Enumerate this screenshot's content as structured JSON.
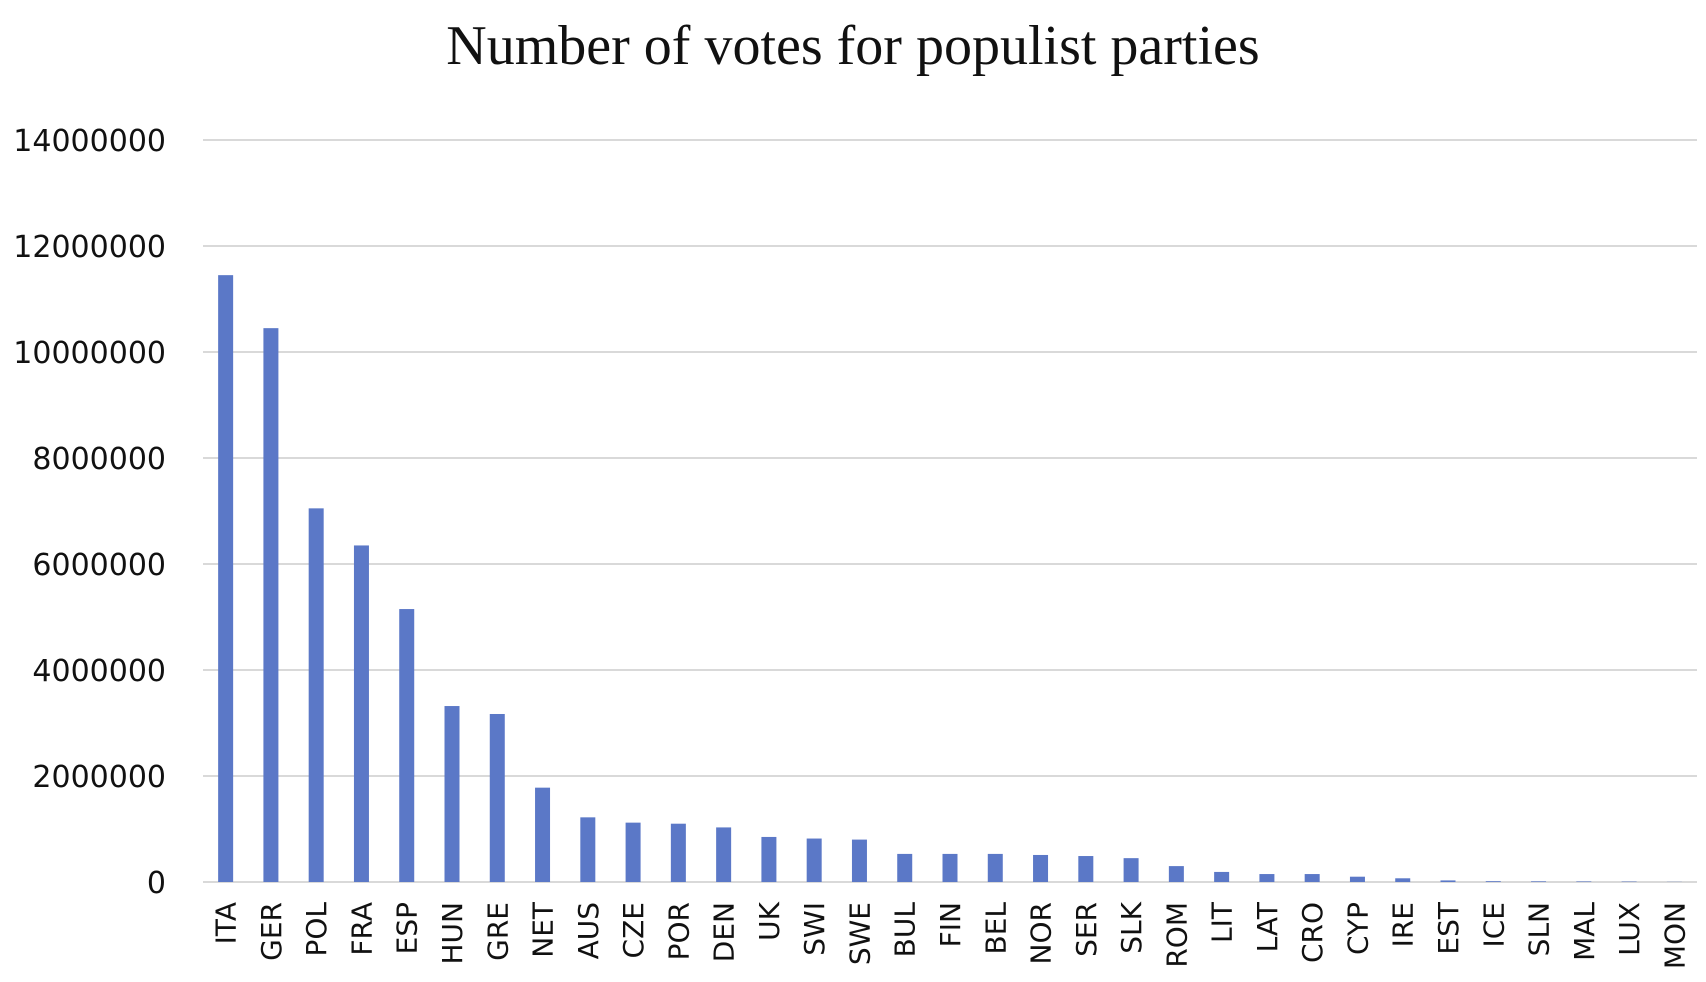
{
  "chart_data": {
    "type": "bar",
    "title": "Number of votes for populist parties",
    "xlabel": "",
    "ylabel": "",
    "ylim": [
      0,
      14000000
    ],
    "yticks": [
      "0",
      "2000000",
      "4000000",
      "6000000",
      "8000000",
      "10000000",
      "12000000",
      "14000000"
    ],
    "grid": true,
    "legend": "none",
    "bar_color": "#5b78c7",
    "categories": [
      "ITA",
      "GER",
      "POL",
      "FRA",
      "ESP",
      "HUN",
      "GRE",
      "NET",
      "AUS",
      "CZE",
      "POR",
      "DEN",
      "UK",
      "SWI",
      "SWE",
      "BUL",
      "FIN",
      "BEL",
      "NOR",
      "SER",
      "SLK",
      "ROM",
      "LIT",
      "LAT",
      "CRO",
      "CYP",
      "IRE",
      "EST",
      "ICE",
      "SLN",
      "MAL",
      "LUX",
      "MON"
    ],
    "values": [
      11450000,
      10450000,
      7050000,
      6350000,
      5150000,
      3320000,
      3170000,
      1780000,
      1220000,
      1120000,
      1100000,
      1030000,
      850000,
      820000,
      800000,
      530000,
      530000,
      530000,
      510000,
      490000,
      450000,
      300000,
      190000,
      150000,
      150000,
      100000,
      70000,
      30000,
      15000,
      12000,
      10000,
      8000,
      3000
    ]
  }
}
